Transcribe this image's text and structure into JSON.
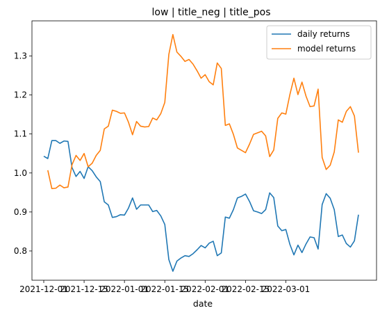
{
  "chart_data": {
    "type": "line",
    "title": "low | title_neg | title_pos",
    "xlabel": "date",
    "ylabel": "",
    "ylim": [
      0.725,
      1.39
    ],
    "x_tick_labels": [
      "2021-12-01",
      "2021-12-15",
      "2022-01-01",
      "2022-01-15",
      "2022-02-01",
      "2022-02-15",
      "2022-03-01"
    ],
    "x_tick_index": [
      0,
      10,
      20,
      30,
      40,
      50,
      60
    ],
    "y_ticks": [
      0.8,
      0.9,
      1.0,
      1.1,
      1.2,
      1.3
    ],
    "legend_position": "upper right",
    "grid": false,
    "series": [
      {
        "name": "daily returns",
        "color": "#1f77b4",
        "start_index": 0,
        "values": [
          1.043,
          1.037,
          1.083,
          1.083,
          1.076,
          1.082,
          1.081,
          1.014,
          0.991,
          1.004,
          0.986,
          1.016,
          1.006,
          0.99,
          0.978,
          0.926,
          0.918,
          0.886,
          0.888,
          0.893,
          0.892,
          0.91,
          0.936,
          0.907,
          0.918,
          0.918,
          0.918,
          0.901,
          0.904,
          0.89,
          0.868,
          0.778,
          0.748,
          0.774,
          0.782,
          0.788,
          0.786,
          0.793,
          0.803,
          0.814,
          0.808,
          0.82,
          0.825,
          0.788,
          0.795,
          0.887,
          0.884,
          0.906,
          0.936,
          0.94,
          0.946,
          0.927,
          0.903,
          0.9,
          0.896,
          0.906,
          0.949,
          0.937,
          0.864,
          0.852,
          0.855,
          0.817,
          0.79,
          0.815,
          0.796,
          0.818,
          0.836,
          0.834,
          0.805,
          0.919,
          0.947,
          0.935,
          0.906,
          0.837,
          0.841,
          0.819,
          0.81,
          0.826,
          0.893
        ]
      },
      {
        "name": "model returns",
        "color": "#ff7f0e",
        "start_index": 1,
        "values": [
          1.007,
          0.96,
          0.961,
          0.969,
          0.962,
          0.964,
          1.021,
          1.045,
          1.032,
          1.05,
          1.016,
          1.025,
          1.045,
          1.058,
          1.113,
          1.12,
          1.161,
          1.158,
          1.153,
          1.154,
          1.13,
          1.098,
          1.132,
          1.12,
          1.118,
          1.119,
          1.141,
          1.136,
          1.152,
          1.181,
          1.304,
          1.355,
          1.31,
          1.299,
          1.286,
          1.291,
          1.279,
          1.262,
          1.243,
          1.252,
          1.234,
          1.226,
          1.282,
          1.268,
          1.122,
          1.126,
          1.099,
          1.064,
          1.058,
          1.052,
          1.074,
          1.099,
          1.103,
          1.107,
          1.095,
          1.042,
          1.059,
          1.14,
          1.154,
          1.151,
          1.201,
          1.243,
          1.201,
          1.233,
          1.197,
          1.17,
          1.172,
          1.215,
          1.04,
          1.009,
          1.02,
          1.054,
          1.136,
          1.13,
          1.158,
          1.17,
          1.146,
          1.052
        ]
      }
    ]
  }
}
